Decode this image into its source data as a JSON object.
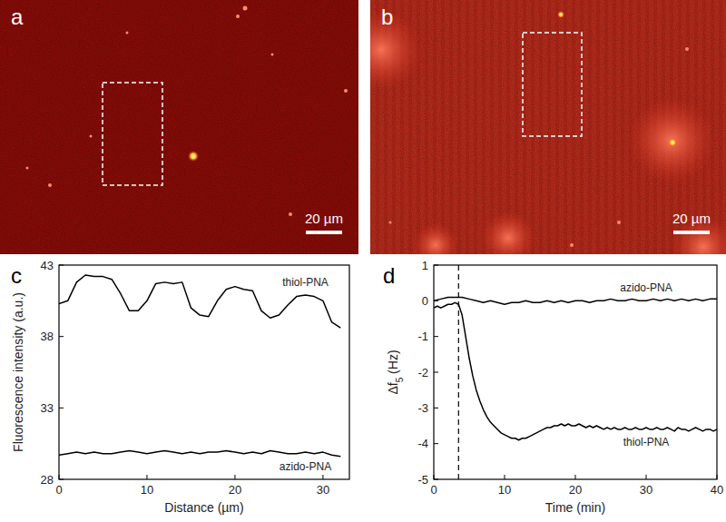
{
  "images": [
    {
      "label": "a",
      "scale_bar": "20 µm"
    },
    {
      "label": "b",
      "scale_bar": "20 µm"
    }
  ],
  "chart_data": [
    {
      "type": "line",
      "title": "c",
      "x_label": "Distance (µm)",
      "y_label": "Fluorescence intensity (a.u.)",
      "xlim": [
        0,
        33
      ],
      "xticks": [
        0,
        10,
        20,
        30
      ],
      "ylim": [
        28,
        43
      ],
      "yticks": [
        28,
        33,
        38,
        43
      ],
      "series": [
        {
          "name": "thiol-PNA",
          "color": "#000000",
          "x": [
            0,
            1,
            2,
            3,
            4,
            5,
            6,
            7,
            8,
            9,
            10,
            11,
            12,
            13,
            14,
            15,
            16,
            17,
            18,
            19,
            20,
            21,
            22,
            23,
            24,
            25,
            26,
            27,
            28,
            29,
            30,
            31,
            32
          ],
          "values": [
            40.3,
            40.5,
            41.8,
            42.3,
            42.2,
            42.2,
            42.0,
            41.0,
            39.8,
            39.8,
            40.5,
            41.7,
            41.8,
            41.7,
            41.8,
            40.0,
            39.5,
            39.4,
            40.5,
            41.3,
            41.5,
            41.3,
            41.2,
            39.8,
            39.3,
            39.5,
            40.2,
            40.8,
            40.9,
            40.8,
            40.5,
            39.0,
            38.6
          ]
        },
        {
          "name": "azido-PNA",
          "color": "#000000",
          "x": [
            0,
            1,
            2,
            3,
            4,
            5,
            6,
            7,
            8,
            9,
            10,
            11,
            12,
            13,
            14,
            15,
            16,
            17,
            18,
            19,
            20,
            21,
            22,
            23,
            24,
            25,
            26,
            27,
            28,
            29,
            30,
            31,
            32
          ],
          "values": [
            29.7,
            29.8,
            29.9,
            29.8,
            29.9,
            29.8,
            29.8,
            29.9,
            30.0,
            29.9,
            29.8,
            29.9,
            30.0,
            29.9,
            29.8,
            29.9,
            29.8,
            29.9,
            29.9,
            30.0,
            29.9,
            29.8,
            29.9,
            29.8,
            30.0,
            29.9,
            29.8,
            29.8,
            29.9,
            29.8,
            29.9,
            29.7,
            29.6
          ]
        }
      ]
    },
    {
      "type": "line",
      "title": "d",
      "x_label": "Time (min)",
      "y_label": "Δf5 (Hz)",
      "xlim": [
        0,
        40
      ],
      "xticks": [
        0,
        10,
        20,
        30,
        40
      ],
      "ylim": [
        -5,
        1
      ],
      "yticks": [
        -5,
        -4,
        -3,
        -2,
        -1,
        0,
        1
      ],
      "annotations": [
        {
          "x": 3.5,
          "line_style": "dashed"
        }
      ],
      "series": [
        {
          "name": "azido-PNA",
          "color": "#000000",
          "x": [
            0,
            1,
            2,
            3,
            4,
            5,
            6,
            7,
            8,
            9,
            10,
            11,
            12,
            13,
            14,
            15,
            16,
            17,
            18,
            19,
            20,
            21,
            22,
            23,
            24,
            25,
            26,
            27,
            28,
            29,
            30,
            31,
            32,
            33,
            34,
            35,
            36,
            37,
            38,
            39,
            40
          ],
          "values": [
            0,
            0.05,
            0.1,
            0.1,
            0.1,
            0.05,
            0,
            -0.05,
            0,
            -0.05,
            -0.1,
            -0.05,
            -0.05,
            0,
            -0.05,
            -0.05,
            0,
            -0.05,
            0,
            -0.05,
            0,
            0,
            -0.05,
            0,
            0,
            0.05,
            0,
            0,
            0.05,
            0,
            0,
            0.05,
            0,
            0.05,
            0,
            0.05,
            0,
            0.05,
            0,
            0.05,
            0.05
          ]
        },
        {
          "name": "thiol-PNA",
          "color": "#000000",
          "x": [
            0,
            0.5,
            1,
            1.5,
            2,
            2.5,
            3,
            3.5,
            4,
            4.5,
            5,
            5.5,
            6,
            6.5,
            7,
            7.5,
            8,
            8.5,
            9,
            9.5,
            10,
            10.5,
            11,
            11.5,
            12,
            12.5,
            13,
            13.5,
            14,
            14.5,
            15,
            15.5,
            16,
            16.5,
            17,
            17.5,
            18,
            18.5,
            19,
            19.5,
            20,
            20.5,
            21,
            21.5,
            22,
            22.5,
            23,
            23.5,
            24,
            24.5,
            25,
            25.5,
            26,
            26.5,
            27,
            27.5,
            28,
            28.5,
            29,
            29.5,
            30,
            30.5,
            31,
            31.5,
            32,
            32.5,
            33,
            33.5,
            34,
            34.5,
            35,
            35.5,
            36,
            36.5,
            37,
            37.5,
            38,
            38.5,
            39,
            39.5,
            40
          ],
          "values": [
            -0.2,
            -0.15,
            -0.2,
            -0.15,
            -0.1,
            -0.1,
            -0.05,
            -0.1,
            -0.4,
            -1.0,
            -1.6,
            -2.1,
            -2.5,
            -2.8,
            -3.05,
            -3.25,
            -3.4,
            -3.5,
            -3.6,
            -3.7,
            -3.75,
            -3.8,
            -3.85,
            -3.85,
            -3.9,
            -3.85,
            -3.85,
            -3.8,
            -3.75,
            -3.7,
            -3.65,
            -3.6,
            -3.55,
            -3.55,
            -3.5,
            -3.5,
            -3.45,
            -3.5,
            -3.45,
            -3.5,
            -3.5,
            -3.45,
            -3.5,
            -3.55,
            -3.5,
            -3.55,
            -3.5,
            -3.55,
            -3.6,
            -3.55,
            -3.6,
            -3.55,
            -3.6,
            -3.6,
            -3.55,
            -3.6,
            -3.6,
            -3.55,
            -3.6,
            -3.6,
            -3.55,
            -3.6,
            -3.6,
            -3.55,
            -3.6,
            -3.6,
            -3.55,
            -3.6,
            -3.65,
            -3.55,
            -3.6,
            -3.6,
            -3.65,
            -3.6,
            -3.55,
            -3.6,
            -3.65,
            -3.6,
            -3.6,
            -3.65,
            -3.6
          ]
        }
      ]
    }
  ]
}
